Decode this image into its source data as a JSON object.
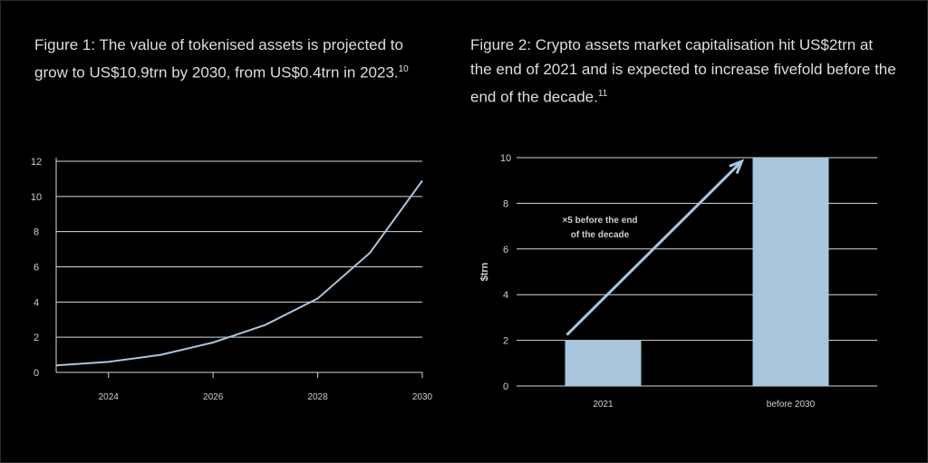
{
  "figure1": {
    "title": "Figure 1: The value of tokenised assets is projected to grow to US$10.9trn by 2030, from US$0.4trn in 2023.",
    "title_ref": "10",
    "line_color": "#a9c6dc",
    "chart_data": {
      "type": "line",
      "title": "Figure 1: The value of tokenised assets is projected to grow to US$10.9trn by 2030, from US$0.4trn in 2023.",
      "xlabel": "",
      "ylabel": "",
      "x": [
        2023,
        2024,
        2025,
        2026,
        2027,
        2028,
        2029,
        2030
      ],
      "series": [
        {
          "values": [
            0.4,
            0.6,
            1.0,
            1.7,
            2.7,
            4.2,
            6.8,
            10.9
          ]
        }
      ],
      "xlim": [
        2023,
        2030
      ],
      "ylim": [
        0,
        12
      ],
      "x_ticks": [
        "2024",
        "2026",
        "2028",
        "2030"
      ],
      "y_ticks": [
        "0",
        "2",
        "4",
        "6",
        "8",
        "10",
        "12"
      ],
      "grid": true
    }
  },
  "figure2": {
    "title": "Figure 2: Crypto assets market capitalisation hit US$2trn at the end of 2021 and is expected to increase fivefold before the end of the decade.",
    "title_ref": "11",
    "bar_color": "#a9c6dc",
    "arrow_color": "#a9c6dc",
    "annotation_line1": "×5 before the end",
    "annotation_line2": "of the decade",
    "chart_data": {
      "type": "bar",
      "title": "Figure 2: Crypto assets market capitalisation hit US$2trn at the end of 2021 and is expected to increase fivefold before the end of the decade.",
      "xlabel": "",
      "ylabel": "$trn",
      "categories": [
        "2021",
        "before 2030"
      ],
      "values": [
        2,
        10
      ],
      "ylim": [
        0,
        10
      ],
      "y_ticks": [
        "0",
        "2",
        "4",
        "6",
        "8",
        "10"
      ],
      "grid": true
    }
  }
}
